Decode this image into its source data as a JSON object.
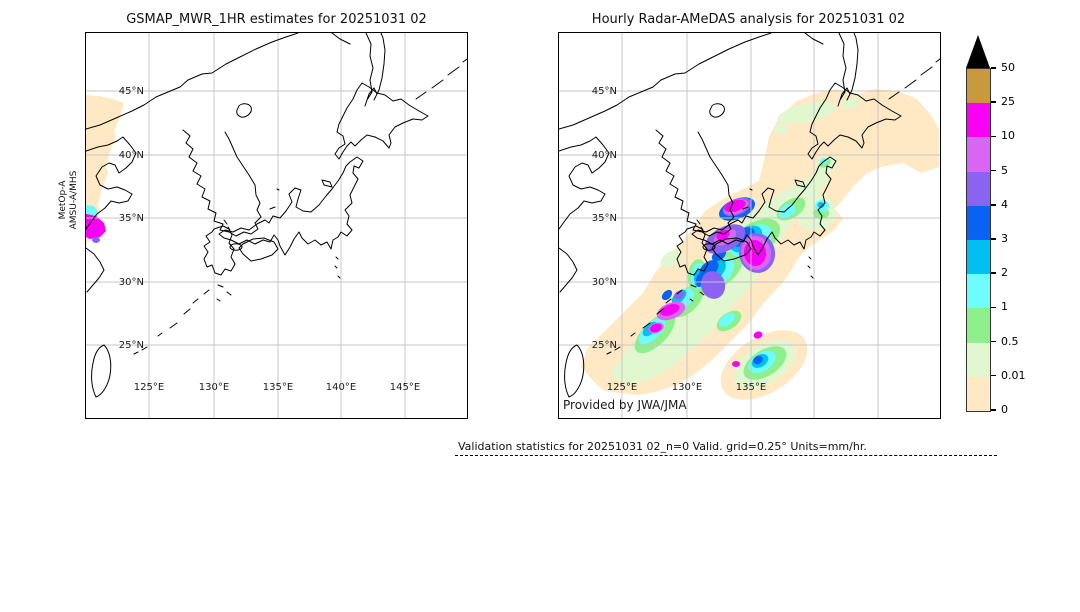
{
  "left_panel": {
    "title": "GSMAP_MWR_1HR estimates for 20251031 02",
    "satellite_label_line1": "MetOp-A",
    "satellite_label_line2": "AMSU-A/MHS"
  },
  "right_panel": {
    "title": "Hourly Radar-AMeDAS analysis for 20251031 02",
    "credit": "Provided by JWA/JMA"
  },
  "axes": {
    "lat_labels": [
      "45°N",
      "40°N",
      "35°N",
      "30°N",
      "25°N"
    ],
    "lon_labels_left": [
      "125°E",
      "130°E",
      "135°E",
      "140°E",
      "145°E"
    ],
    "lon_labels_right": [
      "125°E",
      "130°E",
      "135°E"
    ]
  },
  "colorbar": {
    "tick_labels": [
      "50",
      "25",
      "10",
      "5",
      "4",
      "3",
      "2",
      "1",
      "0.5",
      "0.01",
      "0"
    ],
    "segment_colors_top_to_bottom": [
      "#c99a3d",
      "#f800f3",
      "#d966f2",
      "#8a63f0",
      "#0a62f5",
      "#00c0f0",
      "#6ffcfc",
      "#8df08d",
      "#e0f7d0",
      "#ffe9c4"
    ],
    "overflow_color": "#000000"
  },
  "footer": {
    "text": "Validation statistics for 20251031 02_n=0 Valid. grid=0.25° Units=mm/hr."
  }
}
